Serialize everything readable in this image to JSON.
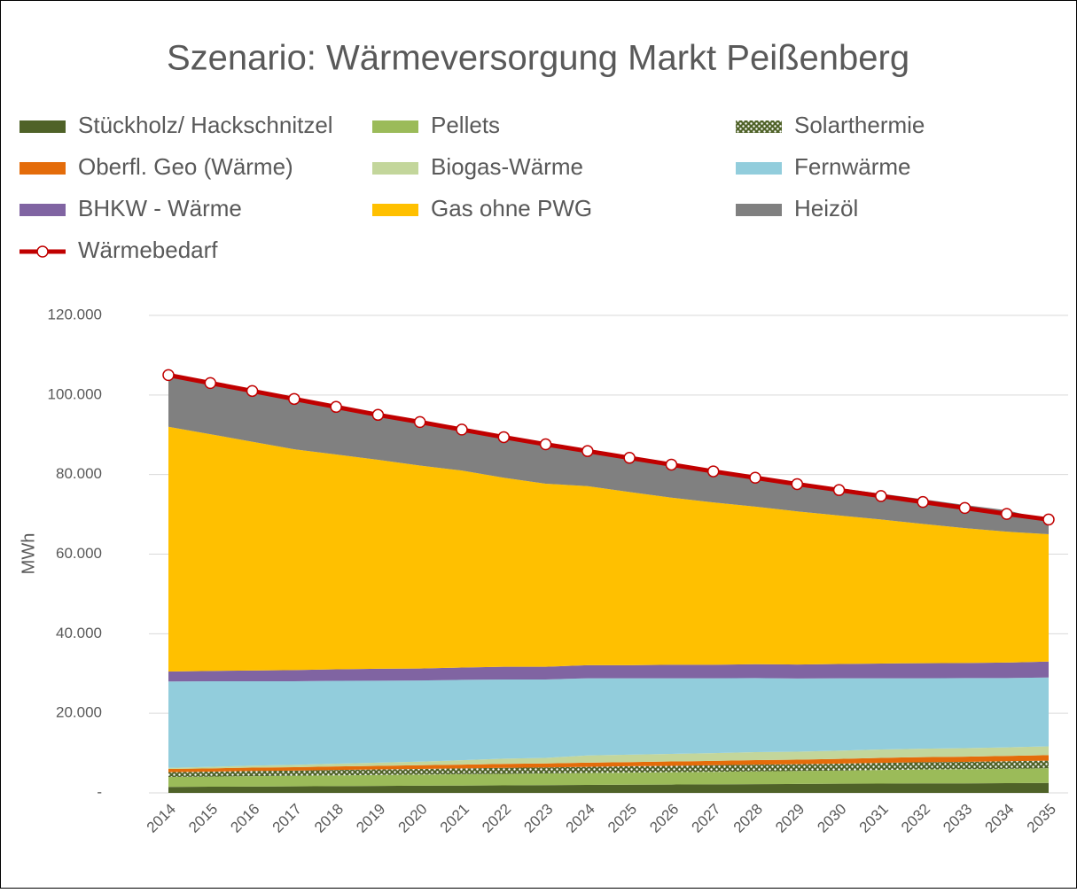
{
  "chart_data": {
    "type": "stacked_area_line",
    "title": "Szenario: Wärmeversorgung Markt Peißenberg",
    "y_label": "MWh",
    "categories": [
      "2014",
      "2015",
      "2016",
      "2017",
      "2018",
      "2019",
      "2020",
      "2021",
      "2022",
      "2023",
      "2024",
      "2025",
      "2026",
      "2027",
      "2028",
      "2029",
      "2030",
      "2031",
      "2032",
      "2033",
      "2034",
      "2035"
    ],
    "series": [
      {
        "name": "Stückholz/ Hackschnitzel",
        "color": "#4f6228",
        "values": [
          1500,
          1550,
          1600,
          1650,
          1700,
          1750,
          1800,
          1850,
          1900,
          1950,
          2000,
          2050,
          2100,
          2150,
          2200,
          2250,
          2300,
          2350,
          2400,
          2400,
          2450,
          2500
        ]
      },
      {
        "name": "Pellets",
        "color": "#9bbb59",
        "values": [
          2500,
          2550,
          2600,
          2650,
          2700,
          2750,
          2800,
          2850,
          2900,
          2950,
          3000,
          3050,
          3100,
          3150,
          3200,
          3250,
          3300,
          3400,
          3500,
          3550,
          3600,
          3700
        ]
      },
      {
        "name": "Solarthermie",
        "color": "#4f6228",
        "pattern": "dots",
        "values": [
          1200,
          1250,
          1300,
          1300,
          1350,
          1400,
          1400,
          1450,
          1500,
          1500,
          1550,
          1600,
          1600,
          1650,
          1700,
          1700,
          1750,
          1800,
          1800,
          1850,
          1900,
          1900
        ]
      },
      {
        "name": "Oberfl. Geo (Wärme)",
        "color": "#e46c0a",
        "values": [
          800,
          800,
          850,
          850,
          900,
          900,
          950,
          950,
          1000,
          1000,
          1050,
          1050,
          1100,
          1100,
          1150,
          1150,
          1200,
          1250,
          1300,
          1300,
          1350,
          1400
        ]
      },
      {
        "name": "Biogas-Wärme",
        "color": "#c3d69b",
        "values": [
          300,
          400,
          500,
          600,
          700,
          800,
          900,
          1100,
          1300,
          1400,
          1800,
          1850,
          1900,
          1950,
          2000,
          2000,
          2050,
          2100,
          2100,
          2150,
          2150,
          2200
        ]
      },
      {
        "name": "Fernwärme",
        "color": "#92cddc",
        "values": [
          21700,
          21500,
          21200,
          21000,
          20800,
          20600,
          20400,
          20200,
          19900,
          19700,
          19400,
          19200,
          19000,
          18800,
          18600,
          18400,
          18200,
          17900,
          17700,
          17600,
          17400,
          17300
        ]
      },
      {
        "name": "BHKW - Wärme",
        "color": "#8064a2",
        "values": [
          2500,
          2600,
          2700,
          2800,
          2900,
          3000,
          3000,
          3100,
          3200,
          3200,
          3300,
          3300,
          3400,
          3400,
          3500,
          3500,
          3600,
          3700,
          3800,
          3800,
          3900,
          4000
        ]
      },
      {
        "name": "Gas ohne PWG",
        "color": "#ffc000",
        "values": [
          61500,
          59500,
          57500,
          55500,
          54000,
          52500,
          51000,
          49500,
          47500,
          46000,
          45000,
          43500,
          42000,
          40800,
          39600,
          38500,
          37300,
          36200,
          35000,
          33900,
          32900,
          32000
        ]
      },
      {
        "name": "Heizöl",
        "color": "#808080",
        "values": [
          13000,
          12800,
          12700,
          12600,
          12000,
          11700,
          11200,
          10400,
          10200,
          9800,
          8800,
          8500,
          8300,
          8000,
          7600,
          7300,
          6900,
          6500,
          6200,
          5800,
          5400,
          3500
        ]
      }
    ],
    "line": {
      "name": "Wärmebedarf",
      "color": "#c00000",
      "values": [
        105000,
        103000,
        101000,
        99000,
        97000,
        95000,
        93200,
        91300,
        89400,
        87600,
        85900,
        84200,
        82500,
        80800,
        79200,
        77600,
        76100,
        74600,
        73100,
        71600,
        70100,
        68700
      ]
    },
    "ylim": [
      0,
      120000
    ],
    "yticks": [
      {
        "value": 0,
        "label": "-"
      },
      {
        "value": 20000,
        "label": "20.000"
      },
      {
        "value": 40000,
        "label": "40.000"
      },
      {
        "value": 60000,
        "label": "60.000"
      },
      {
        "value": 80000,
        "label": "80.000"
      },
      {
        "value": 100000,
        "label": "100.000"
      },
      {
        "value": 120000,
        "label": "120.000"
      }
    ],
    "grid": true,
    "legend": "top"
  }
}
